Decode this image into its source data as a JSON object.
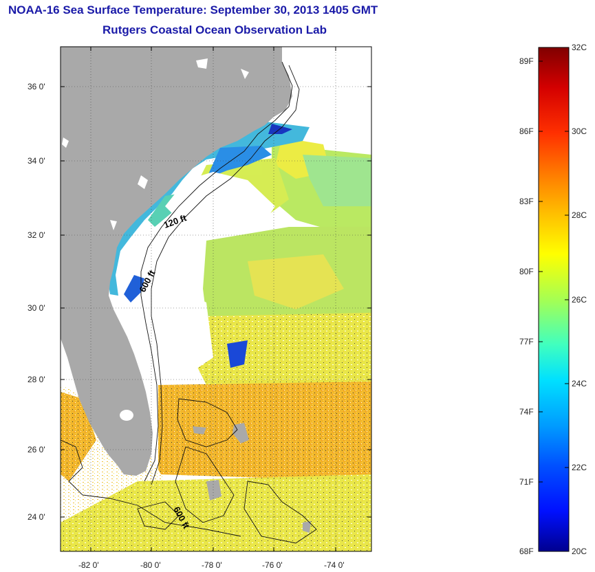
{
  "title": {
    "line1": "NOAA-16 Sea Surface Temperature:  September 30, 2013 1405 GMT",
    "line2": "Rutgers Coastal Ocean Observation Lab"
  },
  "map": {
    "lat_ticks": [
      "36 0'",
      "34 0'",
      "32 0'",
      "30 0'",
      "28 0'",
      "26 0'",
      "24 0'"
    ],
    "lon_ticks": [
      "-82 0'",
      "-80 0'",
      "-78 0'",
      "-76 0'",
      "-74 0'"
    ],
    "isobath_labels": [
      "120 ft",
      "600 ft",
      "600 ft"
    ],
    "land_color": "#a9a9a9",
    "no_data_color": "#ffffff"
  },
  "colorbar": {
    "fahrenheit_labels": [
      "89F",
      "86F",
      "83F",
      "80F",
      "77F",
      "74F",
      "71F",
      "68F"
    ],
    "celsius_labels": [
      "32C",
      "30C",
      "28C",
      "26C",
      "24C",
      "22C",
      "20C"
    ],
    "colors_top_to_bottom": [
      "#800000",
      "#d40000",
      "#ff3000",
      "#ff7a00",
      "#ffbf00",
      "#ffff00",
      "#a6ff52",
      "#40ffbf",
      "#00e0ff",
      "#009cff",
      "#0050ff",
      "#0010ff",
      "#00008f"
    ]
  }
}
